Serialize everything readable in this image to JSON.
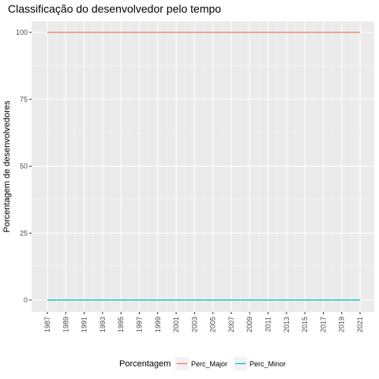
{
  "chart_data": {
    "type": "line",
    "title": "Classificação do desenvolvedor pelo tempo",
    "xlabel": "",
    "ylabel": "Porcentagem de desenvolvedores",
    "x_tick_labels": [
      "1987",
      "1989",
      "1991",
      "1993",
      "1995",
      "1997",
      "1999",
      "2001",
      "2003",
      "2005",
      "2007",
      "2009",
      "2011",
      "2013",
      "2015",
      "2017",
      "2019",
      "2021"
    ],
    "y_tick_labels": [
      "0",
      "25",
      "50",
      "75",
      "100"
    ],
    "xlim": [
      1987,
      2021
    ],
    "ylim": [
      0,
      100
    ],
    "grid": true,
    "legend_placement": "bottom",
    "legend_title": "Porcentagem",
    "series": [
      {
        "name": "Perc_Major",
        "color": "#F8766D",
        "x": [
          1987,
          2021
        ],
        "values": [
          100,
          100
        ]
      },
      {
        "name": "Perc_Minor",
        "color": "#00BFC4",
        "x": [
          1987,
          2021
        ],
        "values": [
          0,
          0
        ]
      }
    ]
  }
}
